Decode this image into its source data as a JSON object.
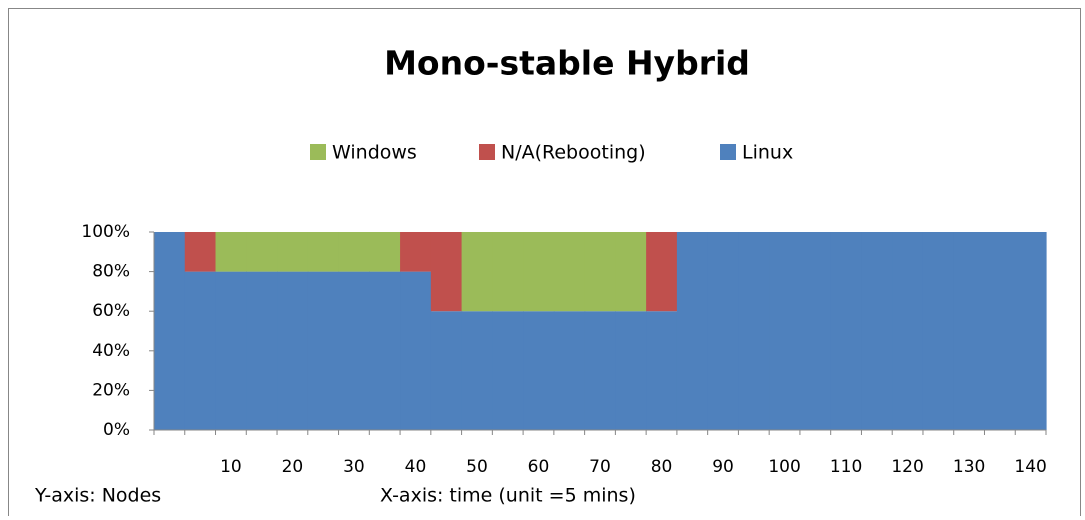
{
  "chart_data": {
    "type": "step-stacked-area",
    "title": "Mono-stable Hybrid",
    "y_note": "Y-axis: Nodes",
    "x_note": "X-axis: time (unit =5 mins)",
    "categories": [
      null,
      null,
      "10",
      null,
      "20",
      null,
      "30",
      null,
      "40",
      null,
      "50",
      null,
      "60",
      null,
      "70",
      null,
      "80",
      null,
      "90",
      null,
      "100",
      null,
      "110",
      null,
      "120",
      null,
      "130",
      null,
      "140"
    ],
    "series": [
      {
        "name": "Linux",
        "color": "#4f81bd",
        "values": [
          100,
          80,
          80,
          80,
          80,
          80,
          80,
          80,
          80,
          60,
          60,
          60,
          60,
          60,
          60,
          60,
          60,
          100,
          100,
          100,
          100,
          100,
          100,
          100,
          100,
          100,
          100,
          100,
          100
        ]
      },
      {
        "name": "N/A(Rebooting)",
        "color": "#c0504d",
        "values": [
          0,
          20,
          0,
          0,
          0,
          0,
          0,
          0,
          20,
          40,
          0,
          0,
          0,
          0,
          0,
          0,
          40,
          0,
          0,
          0,
          0,
          0,
          0,
          0,
          0,
          0,
          0,
          0,
          0
        ]
      },
      {
        "name": "Windows",
        "color": "#9bbb59",
        "values": [
          0,
          0,
          20,
          20,
          20,
          20,
          20,
          20,
          0,
          0,
          40,
          40,
          40,
          40,
          40,
          40,
          0,
          0,
          0,
          0,
          0,
          0,
          0,
          0,
          0,
          0,
          0,
          0,
          0
        ]
      }
    ],
    "ylim": [
      0,
      100
    ],
    "yticks": [
      {
        "value": 0,
        "label": "0%"
      },
      {
        "value": 20,
        "label": "20%"
      },
      {
        "value": 40,
        "label": "40%"
      },
      {
        "value": 60,
        "label": "60%"
      },
      {
        "value": 80,
        "label": "80%"
      },
      {
        "value": 100,
        "label": "100%"
      }
    ],
    "legend": "top"
  }
}
